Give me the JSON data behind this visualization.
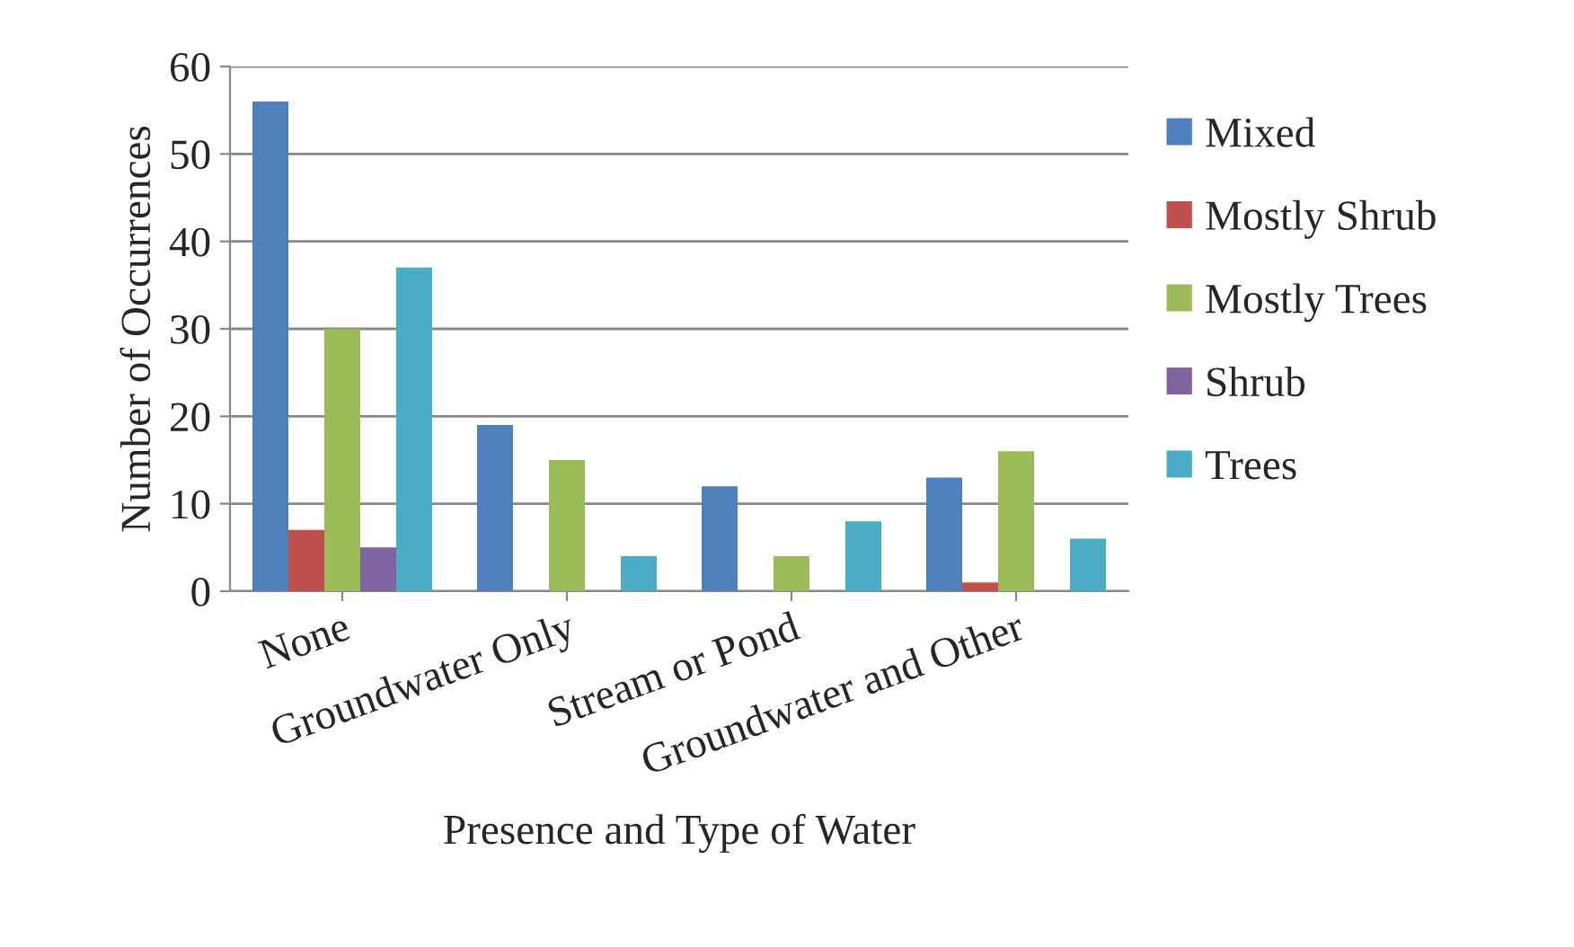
{
  "chart_data": {
    "type": "bar",
    "xlabel": "Presence and Type of Water",
    "ylabel": "Number of Occurrences",
    "categories": [
      "None",
      "Groundwater Only",
      "Stream or Pond",
      "Groundwater and Other"
    ],
    "series": [
      {
        "name": "Mixed",
        "color": "#4f81bd",
        "values": [
          56,
          19,
          12,
          13
        ]
      },
      {
        "name": "Mostly Shrub",
        "color": "#c0504d",
        "values": [
          7,
          null,
          null,
          1
        ]
      },
      {
        "name": "Mostly Trees",
        "color": "#9bbb59",
        "values": [
          30,
          15,
          4,
          16
        ]
      },
      {
        "name": "Shrub",
        "color": "#8064a2",
        "values": [
          5,
          null,
          null,
          null
        ]
      },
      {
        "name": "Trees",
        "color": "#4bacc6",
        "values": [
          37,
          4,
          8,
          6
        ]
      }
    ],
    "ylim": [
      0,
      60
    ],
    "yticks": [
      0,
      10,
      20,
      30,
      40,
      50,
      60
    ],
    "grid": "y",
    "legend": "right"
  }
}
